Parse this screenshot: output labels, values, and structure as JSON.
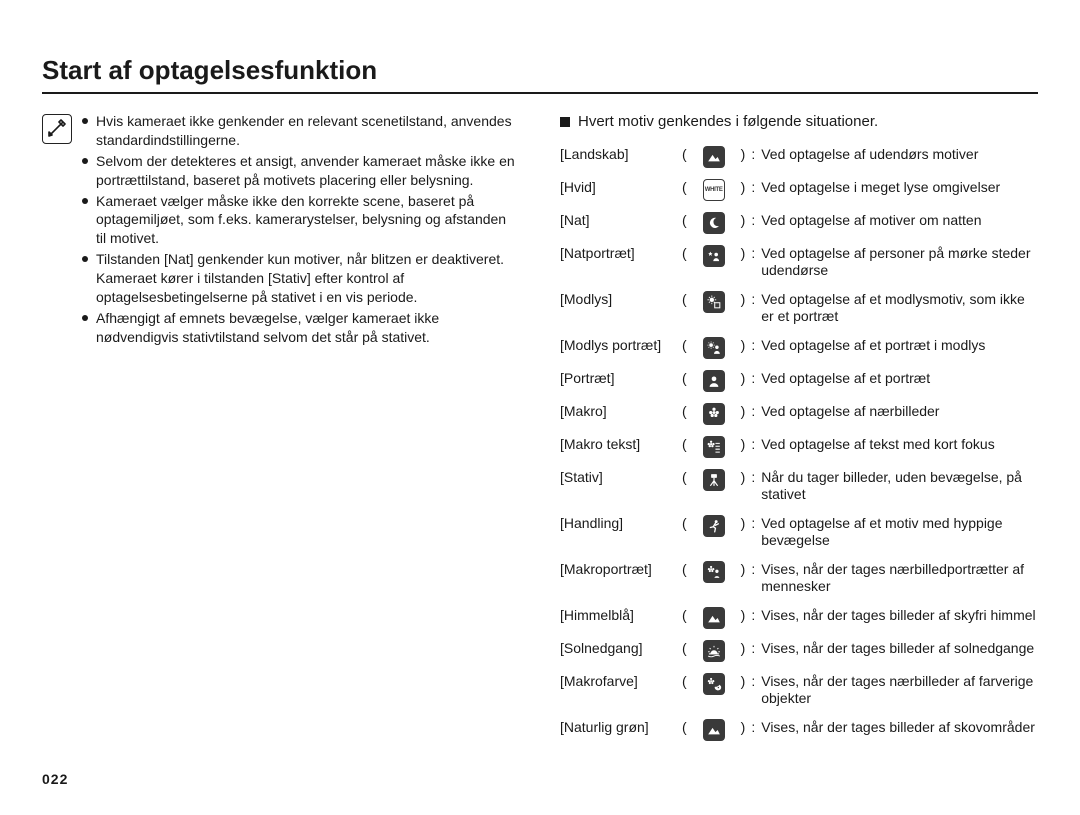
{
  "page": {
    "title": "Start af optagelsesfunktion",
    "number": "022"
  },
  "notes": {
    "bullets": [
      "Hvis kameraet ikke genkender en relevant scenetilstand, anvendes standardindstillingerne.",
      "Selvom der detekteres et ansigt, anvender kameraet måske ikke en portrættilstand, baseret på motivets placering eller belysning.",
      "Kameraet vælger måske ikke den korrekte scene, baseret på optagemiljøet, som f.eks. kamerarystelser, belysning og afstanden til motivet.",
      "Tilstanden [Nat] genkender kun motiver, når blitzen er deaktiveret. Kameraet kører i tilstanden [Stativ] efter kontrol af optagelsesbetingelserne på stativet i en vis periode.",
      "Afhængigt af emnets bevægelse, vælger kameraet ikke nødvendigvis stativtilstand selvom det står på stativet."
    ]
  },
  "scenes": {
    "heading": "Hvert motiv genkendes i følgende situationer.",
    "rows": [
      {
        "label": "[Landskab]",
        "icon": "landscape",
        "desc": "Ved optagelse af udendørs motiver"
      },
      {
        "label": "[Hvid]",
        "icon": "white",
        "desc": "Ved optagelse i meget lyse omgivelser"
      },
      {
        "label": "[Nat]",
        "icon": "night",
        "desc": "Ved optagelse af motiver om natten"
      },
      {
        "label": "[Natportræt]",
        "icon": "night-portrait",
        "desc": "Ved optagelse af personer på mørke steder udendørse"
      },
      {
        "label": "[Modlys]",
        "icon": "backlight",
        "desc": "Ved optagelse af et modlysmotiv, som ikke er et portræt"
      },
      {
        "label": "[Modlys portræt]",
        "icon": "backlight-portrait",
        "desc": "Ved optagelse af et portræt i modlys"
      },
      {
        "label": "[Portræt]",
        "icon": "portrait",
        "desc": "Ved optagelse af et portræt"
      },
      {
        "label": "[Makro]",
        "icon": "macro",
        "desc": "Ved optagelse af nærbilleder"
      },
      {
        "label": "[Makro tekst]",
        "icon": "macro-text",
        "desc": "Ved optagelse af tekst med kort fokus"
      },
      {
        "label": "[Stativ]",
        "icon": "tripod",
        "desc": "Når du tager billeder, uden bevægelse, på stativet"
      },
      {
        "label": "[Handling]",
        "icon": "action",
        "desc": "Ved optagelse af et motiv med hyppige bevægelse"
      },
      {
        "label": "[Makroportræt]",
        "icon": "macro-portrait",
        "desc": "Vises, når der tages nærbilledportrætter af mennesker"
      },
      {
        "label": "[Himmelblå]",
        "icon": "bluesky",
        "desc": "Vises, når der tages billeder af skyfri himmel"
      },
      {
        "label": "[Solnedgang]",
        "icon": "sunset",
        "desc": "Vises, når der tages billeder af solnedgange"
      },
      {
        "label": "[Makrofarve]",
        "icon": "macro-color",
        "desc": "Vises, når der tages nærbilleder af farverige objekter"
      },
      {
        "label": "[Naturlig grøn]",
        "icon": "natural-green",
        "desc": "Vises, når der tages billeder af skovområder"
      }
    ]
  },
  "icons": {
    "landscape": {
      "variant": "dark",
      "glyph": "landscape"
    },
    "white": {
      "variant": "white",
      "glyph": "white-text"
    },
    "night": {
      "variant": "dark",
      "glyph": "moon"
    },
    "night-portrait": {
      "variant": "dark",
      "glyph": "star-person"
    },
    "backlight": {
      "variant": "dark",
      "glyph": "sun-square"
    },
    "backlight-portrait": {
      "variant": "dark",
      "glyph": "sun-person"
    },
    "portrait": {
      "variant": "dark",
      "glyph": "person"
    },
    "macro": {
      "variant": "dark",
      "glyph": "flower"
    },
    "macro-text": {
      "variant": "dark",
      "glyph": "flower-lines"
    },
    "tripod": {
      "variant": "dark",
      "glyph": "tripod"
    },
    "action": {
      "variant": "dark",
      "glyph": "runner"
    },
    "macro-portrait": {
      "variant": "dark",
      "glyph": "flower-person"
    },
    "bluesky": {
      "variant": "dark",
      "glyph": "landscape"
    },
    "sunset": {
      "variant": "dark",
      "glyph": "sunset"
    },
    "macro-color": {
      "variant": "dark",
      "glyph": "flower-palette"
    },
    "natural-green": {
      "variant": "dark",
      "glyph": "landscape"
    }
  }
}
